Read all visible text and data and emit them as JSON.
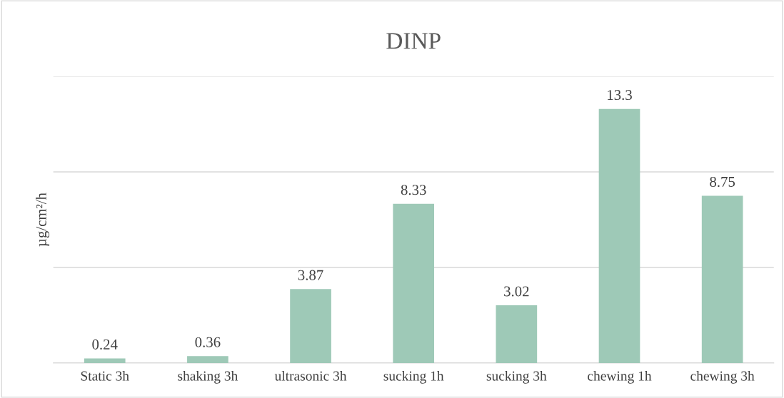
{
  "chart_data": {
    "type": "bar",
    "title": "DINP",
    "ylabel": "µg/cm²/h",
    "categories": [
      "Static 3h",
      "shaking 3h",
      "ultrasonic 3h",
      "sucking 1h",
      "sucking 3h",
      "chewing 1h",
      "chewing 3h"
    ],
    "values": [
      0.24,
      0.36,
      3.87,
      8.33,
      3.02,
      13.3,
      8.75
    ],
    "color": "#9ec9b7",
    "ylim": [
      0,
      15
    ],
    "yticks": [
      {
        "value": 0,
        "label": null
      },
      {
        "value": 5,
        "label": null
      },
      {
        "value": 10,
        "label": null
      },
      {
        "value": 15,
        "label": null
      }
    ],
    "tick_labels": "x",
    "grid": "y",
    "data_labels": true
  }
}
